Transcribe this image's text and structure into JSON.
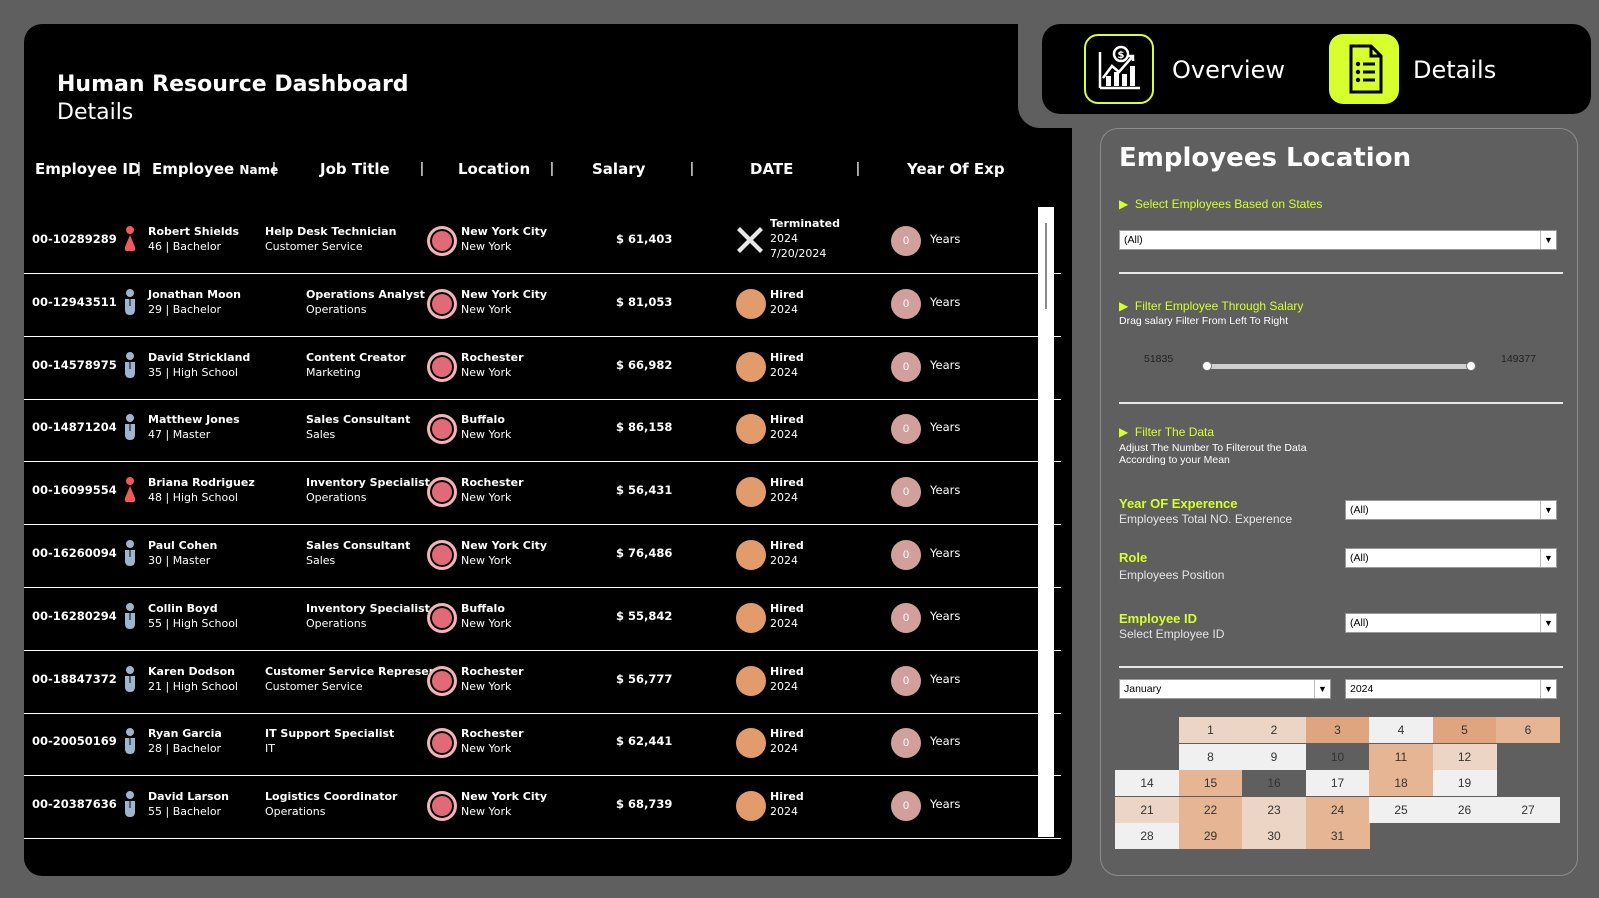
{
  "header": {
    "title": "Human Resource Dashboard",
    "subtitle": "Details"
  },
  "nav": {
    "overview_label": "Overview",
    "details_label": "Details",
    "overview_icon": "chart-dollar-icon",
    "details_icon": "document-list-icon"
  },
  "table": {
    "columns": {
      "employee_id": "Employee ID",
      "employee": "Employee",
      "name": "Name",
      "job_title": "Job Title",
      "location": "Location",
      "salary": "Salary",
      "date": "DATE",
      "year_of_exp": "Year Of Exp"
    },
    "rows": [
      {
        "id": "00-10289289",
        "name": "Robert Shields",
        "info": "46 | Bachelor",
        "gender": "female",
        "job": "Help Desk Technician",
        "dept": "Customer Service",
        "city": "New York City",
        "state": "New York",
        "salary": "$ 61,403",
        "status": "Terminated",
        "year": "2024",
        "term_date": "7/20/2024",
        "exp": "0",
        "years_label": "Years"
      },
      {
        "id": "00-12943511",
        "name": "Jonathan Moon",
        "info": "29 | Bachelor",
        "gender": "male",
        "job": "Operations Analyst",
        "dept": "Operations",
        "city": "New York City",
        "state": "New York",
        "salary": "$ 81,053",
        "status": "Hired",
        "year": "2024",
        "term_date": "",
        "exp": "0",
        "years_label": "Years"
      },
      {
        "id": "00-14578975",
        "name": "David Strickland",
        "info": "35 | High School",
        "gender": "male",
        "job": "Content Creator",
        "dept": "Marketing",
        "city": "Rochester",
        "state": "New York",
        "salary": "$ 66,982",
        "status": "Hired",
        "year": "2024",
        "term_date": "",
        "exp": "0",
        "years_label": "Years"
      },
      {
        "id": "00-14871204",
        "name": "Matthew Jones",
        "info": "47 | Master",
        "gender": "male",
        "job": "Sales Consultant",
        "dept": "Sales",
        "city": "Buffalo",
        "state": "New York",
        "salary": "$ 86,158",
        "status": "Hired",
        "year": "2024",
        "term_date": "",
        "exp": "0",
        "years_label": "Years"
      },
      {
        "id": "00-16099554",
        "name": "Briana Rodriguez",
        "info": "48 | High School",
        "gender": "female",
        "job": "Inventory Specialist",
        "dept": "Operations",
        "city": "Rochester",
        "state": "New York",
        "salary": "$ 56,431",
        "status": "Hired",
        "year": "2024",
        "term_date": "",
        "exp": "0",
        "years_label": "Years"
      },
      {
        "id": "00-16260094",
        "name": "Paul Cohen",
        "info": "30 | Master",
        "gender": "male",
        "job": "Sales Consultant",
        "dept": "Sales",
        "city": "New York City",
        "state": "New York",
        "salary": "$ 76,486",
        "status": "Hired",
        "year": "2024",
        "term_date": "",
        "exp": "0",
        "years_label": "Years"
      },
      {
        "id": "00-16280294",
        "name": "Collin Boyd",
        "info": "55 | High School",
        "gender": "male",
        "job": "Inventory Specialist",
        "dept": "Operations",
        "city": "Buffalo",
        "state": "New York",
        "salary": "$ 55,842",
        "status": "Hired",
        "year": "2024",
        "term_date": "",
        "exp": "0",
        "years_label": "Years"
      },
      {
        "id": "00-18847372",
        "name": "Karen Dodson",
        "info": "21 | High School",
        "gender": "male",
        "job": "Customer Service Represent",
        "dept": "Customer Service",
        "city": "Rochester",
        "state": "New York",
        "salary": "$ 56,777",
        "status": "Hired",
        "year": "2024",
        "term_date": "",
        "exp": "0",
        "years_label": "Years"
      },
      {
        "id": "00-20050169",
        "name": "Ryan Garcia",
        "info": "28 | Bachelor",
        "gender": "male",
        "job": "IT Support Specialist",
        "dept": "IT",
        "city": "Rochester",
        "state": "New York",
        "salary": "$ 62,441",
        "status": "Hired",
        "year": "2024",
        "term_date": "",
        "exp": "0",
        "years_label": "Years"
      },
      {
        "id": "00-20387636",
        "name": "David Larson",
        "info": "55 | Bachelor",
        "gender": "male",
        "job": "Logistics Coordinator",
        "dept": "Operations",
        "city": "New York City",
        "state": "New York",
        "salary": "$ 68,739",
        "status": "Hired",
        "year": "2024",
        "term_date": "",
        "exp": "0",
        "years_label": "Years"
      }
    ]
  },
  "filters": {
    "title": "Employees Location",
    "states_label": "Select Employees Based on States",
    "states_value": "(All)",
    "salary_label": "Filter Employee Through Salary",
    "salary_hint": "Drag salary Filter From Left To Right",
    "salary_min": "51835",
    "salary_max": "149377",
    "data_label": "Filter The Data",
    "data_hint_1": "Adjust The Number To Filterout the Data",
    "data_hint_2": "According to your Mean",
    "exp_label": "Year OF Experence",
    "exp_sub": "Employees Total NO. Experence",
    "exp_value": "(All)",
    "role_label": "Role",
    "role_sub": "Employees Position",
    "role_value": "(All)",
    "empid_label": "Employee ID",
    "empid_sub": "Select Employee ID",
    "empid_value": "(All)",
    "month_value": "January",
    "year_value": "2024"
  },
  "colors": {
    "accent": "#d7ff2e",
    "location_dot": "#e06a76",
    "hired_dot": "#e29b6a",
    "exp_dot": "#d1a09d"
  },
  "calendar": {
    "days": [
      {
        "d": "1",
        "c": "#ecd5c4"
      },
      {
        "d": "2",
        "c": "#ecd5c4"
      },
      {
        "d": "3",
        "c": "#e0a57e"
      },
      {
        "d": "4",
        "c": "#f0f0f0"
      },
      {
        "d": "5",
        "c": "#e0a57e"
      },
      {
        "d": "6",
        "c": "#e6b594"
      },
      {
        "d": "8",
        "c": "#f0f0f0"
      },
      {
        "d": "9",
        "c": "#f0f0f0"
      },
      {
        "d": "10",
        "c": "#5f5f5f"
      },
      {
        "d": "11",
        "c": "#e6b594"
      },
      {
        "d": "12",
        "c": "#ecd5c4"
      },
      {
        "d": "14",
        "c": "#f0f0f0"
      },
      {
        "d": "15",
        "c": "#e6b594"
      },
      {
        "d": "16",
        "c": "#5f5f5f"
      },
      {
        "d": "17",
        "c": "#f0f0f0"
      },
      {
        "d": "18",
        "c": "#e6b594"
      },
      {
        "d": "19",
        "c": "#f0f0f0"
      },
      {
        "d": "21",
        "c": "#ecd5c4"
      },
      {
        "d": "22",
        "c": "#e6b594"
      },
      {
        "d": "23",
        "c": "#ecd5c4"
      },
      {
        "d": "24",
        "c": "#e6b594"
      },
      {
        "d": "25",
        "c": "#f0f0f0"
      },
      {
        "d": "26",
        "c": "#f0f0f0"
      },
      {
        "d": "27",
        "c": "#f0f0f0"
      },
      {
        "d": "28",
        "c": "#f0f0f0"
      },
      {
        "d": "29",
        "c": "#e6b594"
      },
      {
        "d": "30",
        "c": "#ecd5c4"
      },
      {
        "d": "31",
        "c": "#e6b594"
      }
    ]
  }
}
